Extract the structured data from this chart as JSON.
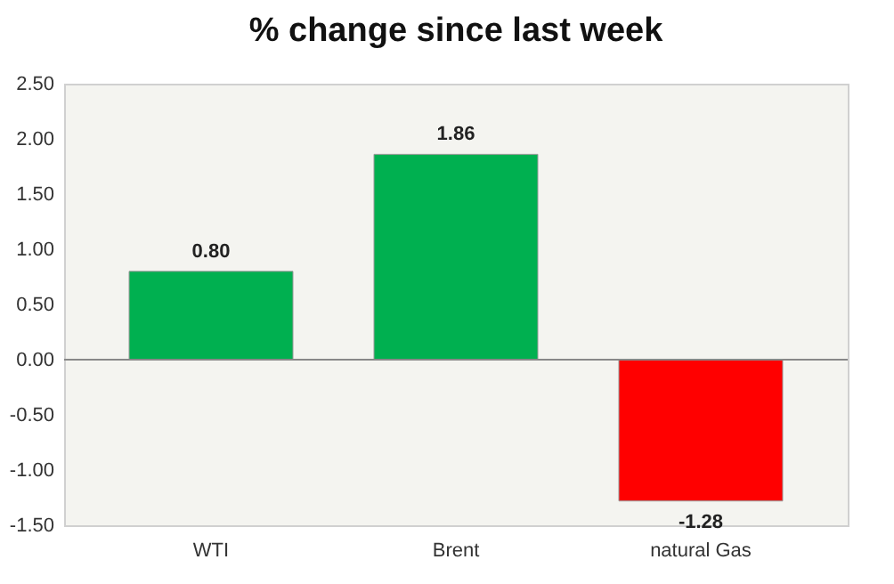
{
  "chart_data": {
    "type": "bar",
    "title": "% change since last week",
    "categories": [
      "WTI",
      "Brent",
      "natural Gas"
    ],
    "values": [
      0.8,
      1.86,
      -1.28
    ],
    "colors": [
      "#00b050",
      "#00b050",
      "#ff0000"
    ],
    "value_labels": [
      "0.80",
      "1.86",
      "-1.28"
    ],
    "ylim": [
      -1.5,
      2.5
    ],
    "yticks": [
      {
        "value": -1.5,
        "label": "-1.50"
      },
      {
        "value": -1.0,
        "label": "-1.00"
      },
      {
        "value": -0.5,
        "label": "-0.50"
      },
      {
        "value": 0,
        "label": "0.00"
      },
      {
        "value": 0.5,
        "label": "0.50"
      },
      {
        "value": 1.0,
        "label": "1.00"
      },
      {
        "value": 1.5,
        "label": "1.50"
      },
      {
        "value": 2.0,
        "label": "2.00"
      },
      {
        "value": 2.5,
        "label": "2.50"
      }
    ]
  }
}
